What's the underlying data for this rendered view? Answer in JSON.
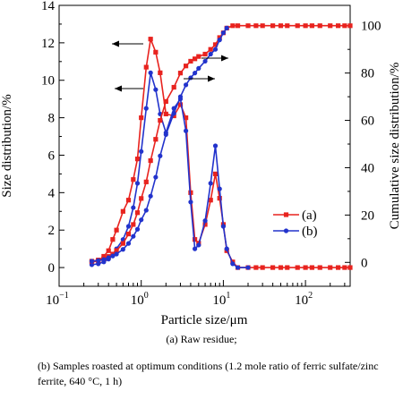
{
  "chart_data": {
    "type": "line",
    "xlabel": "Particle size/μm",
    "ylabel": "Size distribution/%",
    "y2label": "Cumulative size distribution/%",
    "xscale": "log",
    "xlim": [
      0.1,
      350
    ],
    "ylim": [
      -1,
      14
    ],
    "y2lim": [
      -10.1,
      108.6
    ],
    "xticks": [
      {
        "v": 0.1,
        "base": "10",
        "exp": "−1"
      },
      {
        "v": 1,
        "base": "10",
        "exp": "0"
      },
      {
        "v": 10,
        "base": "10",
        "exp": "1"
      },
      {
        "v": 100,
        "base": "10",
        "exp": "2"
      }
    ],
    "yticks": [
      "0",
      "2",
      "4",
      "6",
      "8",
      "10",
      "12",
      "14"
    ],
    "y2ticks": [
      "0",
      "20",
      "40",
      "60",
      "80",
      "100"
    ],
    "series": [
      {
        "name": "(a)",
        "color": "#e8231f",
        "marker": "square",
        "axis": "left",
        "x": [
          0.25,
          0.3,
          0.35,
          0.4,
          0.45,
          0.5,
          0.6,
          0.7,
          0.8,
          0.9,
          1.0,
          1.15,
          1.3,
          1.5,
          1.7,
          2.0,
          2.5,
          3.0,
          3.5,
          4.0,
          4.5,
          5.0,
          6.0,
          7.0,
          8.0,
          9.0,
          10.0,
          11.0,
          13.0,
          15.0,
          20.0,
          25.0,
          30.0,
          40.0,
          50.0,
          60.0,
          80.0,
          100.0,
          120.0,
          150.0,
          200.0,
          250.0,
          300.0,
          350.0
        ],
        "y": [
          0.3,
          0.35,
          0.6,
          0.9,
          1.5,
          2.0,
          3.0,
          3.6,
          4.7,
          5.8,
          8.0,
          10.7,
          12.2,
          11.5,
          10.4,
          8.2,
          8.1,
          8.7,
          8.0,
          4.0,
          1.5,
          1.3,
          2.3,
          3.6,
          5.0,
          3.7,
          2.3,
          0.9,
          0.3,
          0.0,
          0.0,
          0.0,
          0.0,
          0.0,
          0.0,
          0.0,
          0.0,
          0.0,
          0.0,
          0.0,
          0.0,
          0.0,
          0.0,
          0.0
        ]
      },
      {
        "name": "(b)",
        "color": "#2233cc",
        "marker": "circle",
        "axis": "left",
        "x": [
          0.25,
          0.3,
          0.35,
          0.4,
          0.45,
          0.5,
          0.6,
          0.7,
          0.8,
          0.9,
          1.0,
          1.15,
          1.3,
          1.5,
          1.7,
          2.0,
          2.5,
          3.0,
          3.5,
          4.0,
          4.5,
          5.0,
          6.0,
          7.0,
          8.0,
          9.0,
          10.0,
          11.0,
          13.0,
          15.0,
          20.0
        ],
        "y": [
          0.15,
          0.2,
          0.3,
          0.45,
          0.7,
          1.0,
          1.5,
          2.2,
          3.2,
          4.5,
          6.2,
          8.5,
          10.4,
          9.5,
          8.2,
          7.2,
          8.5,
          9.0,
          7.3,
          3.5,
          1.0,
          1.2,
          2.5,
          4.5,
          6.5,
          4.2,
          2.2,
          1.0,
          0.2,
          0.0,
          0.0
        ]
      },
      {
        "name": "(a) cumulative",
        "color": "#e8231f",
        "marker": "square",
        "axis": "right",
        "x": [
          0.25,
          0.3,
          0.35,
          0.4,
          0.45,
          0.5,
          0.6,
          0.7,
          0.8,
          0.9,
          1.0,
          1.15,
          1.3,
          1.5,
          1.7,
          2.0,
          2.5,
          3.0,
          3.5,
          4.0,
          4.5,
          5.0,
          6.0,
          7.0,
          8.0,
          9.0,
          10.0,
          11.0,
          13.0,
          15.0,
          20.0,
          25.0,
          30.0,
          40.0,
          50.0,
          60.0,
          80.0,
          100.0,
          120.0,
          150.0,
          200.0,
          250.0,
          300.0,
          350.0
        ],
        "y": [
          0.5,
          1.0,
          1.5,
          2.5,
          3.5,
          5.0,
          8.0,
          12.0,
          16.0,
          21.0,
          27.0,
          34.0,
          43.0,
          52.0,
          60.0,
          68.0,
          74.0,
          80.0,
          83.0,
          85.0,
          86.0,
          87.0,
          88.0,
          90.0,
          92.0,
          95.0,
          97.0,
          99.0,
          100.0,
          100.0,
          100.0,
          100.0,
          100.0,
          100.0,
          100.0,
          100.0,
          100.0,
          100.0,
          100.0,
          100.0,
          100.0,
          100.0,
          100.0,
          100.0
        ]
      },
      {
        "name": "(b) cumulative",
        "color": "#2233cc",
        "marker": "circle",
        "axis": "right",
        "x": [
          0.25,
          0.3,
          0.35,
          0.4,
          0.45,
          0.5,
          0.6,
          0.7,
          0.8,
          0.9,
          1.0,
          1.15,
          1.3,
          1.5,
          1.7,
          2.0,
          2.5,
          3.0,
          3.5,
          4.0,
          4.5,
          5.0,
          6.0,
          7.0,
          8.0,
          9.0,
          10.0,
          11.0
        ],
        "y": [
          0.5,
          0.8,
          1.2,
          2.0,
          2.7,
          3.5,
          5.5,
          8.0,
          11.0,
          14.0,
          18.0,
          22.0,
          28.0,
          36.0,
          45.0,
          54.0,
          63.0,
          70.0,
          75.0,
          78.0,
          80.0,
          82.0,
          85.0,
          88.0,
          90.0,
          94.0,
          97.0,
          99.0
        ]
      }
    ],
    "legend": {
      "position": "bottom-right",
      "entries": [
        "(a)",
        "(b)"
      ]
    },
    "annotations": "double arrows: left arrows near the peaks point to the left axis, right arrows near the cumulative curves point to the right axis"
  },
  "captions": {
    "a": "(a) Raw residue;",
    "b": "(b) Samples roasted at optimum conditions (1.2 mole ratio of ferric sulfate/zinc ferrite, 640 °C, 1 h)"
  }
}
